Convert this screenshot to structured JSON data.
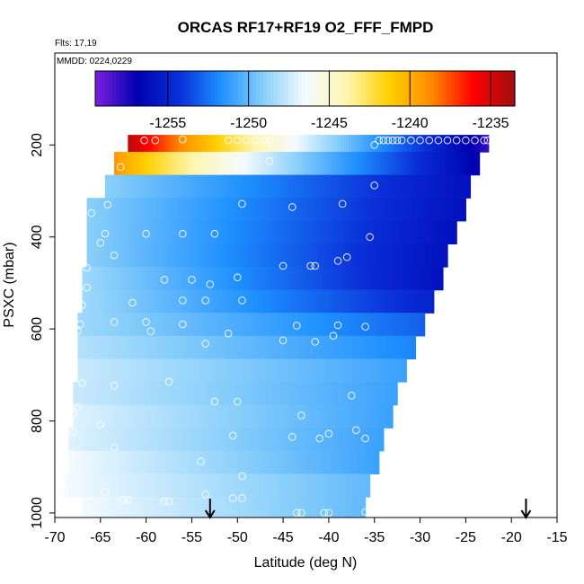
{
  "chart_data": {
    "type": "heatmap",
    "title": "ORCAS RF17+RF19 O2_FFF_FMPD",
    "subtitle_flights": "Flts: 17,19",
    "subtitle_dates": "MMDD: 0224,0229",
    "xlabel": "Latitude (deg N)",
    "ylabel": "PSXC (mbar)",
    "xlim": [
      -70,
      -15
    ],
    "ylim": [
      1010,
      0
    ],
    "x_ticks": [
      -70,
      -65,
      -60,
      -55,
      -50,
      -45,
      -40,
      -35,
      -30,
      -25,
      -20,
      -15
    ],
    "y_ticks": [
      200,
      400,
      600,
      800,
      1000
    ],
    "colorbar": {
      "range": [
        -1259.5,
        -1233.5
      ],
      "ticks": [
        -1255,
        -1250,
        -1245,
        -1240,
        -1235
      ],
      "stops": [
        "#7b1fe0",
        "#0000b0",
        "#0a2fd8",
        "#1e90ff",
        "#87cefa",
        "#f4fbff",
        "#fff6b0",
        "#ffd000",
        "#ff8c00",
        "#ff0000",
        "#a01010"
      ]
    },
    "bands": [
      {
        "p": 190,
        "lat_min": -62.0,
        "lat_max": -22.5,
        "v_min": -1258,
        "v_max": -1234
      },
      {
        "p": 240,
        "lat_min": -63.5,
        "lat_max": -23.5,
        "v_min": -1257,
        "v_max": -1239
      },
      {
        "p": 290,
        "lat_min": -64.5,
        "lat_max": -24.5,
        "v_min": -1256,
        "v_max": -1249
      },
      {
        "p": 340,
        "lat_min": -66.5,
        "lat_max": -25.0,
        "v_min": -1256,
        "v_max": -1249
      },
      {
        "p": 390,
        "lat_min": -66.5,
        "lat_max": -26.0,
        "v_min": -1256,
        "v_max": -1249
      },
      {
        "p": 440,
        "lat_min": -66.5,
        "lat_max": -27.0,
        "v_min": -1256,
        "v_max": -1249
      },
      {
        "p": 490,
        "lat_min": -67.0,
        "lat_max": -27.5,
        "v_min": -1256,
        "v_max": -1248.5
      },
      {
        "p": 540,
        "lat_min": -67.0,
        "lat_max": -28.5,
        "v_min": -1255,
        "v_max": -1248.5
      },
      {
        "p": 590,
        "lat_min": -67.5,
        "lat_max": -29.5,
        "v_min": -1253,
        "v_max": -1248.5
      },
      {
        "p": 640,
        "lat_min": -67.5,
        "lat_max": -30.5,
        "v_min": -1252,
        "v_max": -1248
      },
      {
        "p": 690,
        "lat_min": -67.5,
        "lat_max": -31.5,
        "v_min": -1251,
        "v_max": -1247.5
      },
      {
        "p": 740,
        "lat_min": -68.0,
        "lat_max": -32.5,
        "v_min": -1251,
        "v_max": -1247.5
      },
      {
        "p": 790,
        "lat_min": -68.0,
        "lat_max": -33.0,
        "v_min": -1251,
        "v_max": -1247
      },
      {
        "p": 840,
        "lat_min": -68.5,
        "lat_max": -34.0,
        "v_min": -1251,
        "v_max": -1247
      },
      {
        "p": 890,
        "lat_min": -68.5,
        "lat_max": -34.5,
        "v_min": -1251,
        "v_max": -1246.5
      },
      {
        "p": 940,
        "lat_min": -69.0,
        "lat_max": -35.5,
        "v_min": -1250,
        "v_max": -1246.5
      },
      {
        "p": 990,
        "lat_min": -67.0,
        "lat_max": -36.0,
        "v_min": -1250,
        "v_max": -1246.5
      }
    ],
    "points": [
      [
        -60.2,
        190
      ],
      [
        -59,
        190
      ],
      [
        -56,
        188
      ],
      [
        -51,
        190
      ],
      [
        -50,
        190
      ],
      [
        -49,
        190
      ],
      [
        -48,
        190
      ],
      [
        -47,
        190
      ],
      [
        -46.5,
        190
      ],
      [
        -34.5,
        190
      ],
      [
        -34,
        190
      ],
      [
        -33.5,
        190
      ],
      [
        -33,
        190
      ],
      [
        -32.5,
        190
      ],
      [
        -32,
        190
      ],
      [
        -31,
        190
      ],
      [
        -30,
        190
      ],
      [
        -29,
        190
      ],
      [
        -28,
        190
      ],
      [
        -27,
        190
      ],
      [
        -26,
        190
      ],
      [
        -25,
        190
      ],
      [
        -24,
        190
      ],
      [
        -23,
        190
      ],
      [
        -22.6,
        190
      ],
      [
        -35,
        200
      ],
      [
        -62.8,
        248
      ],
      [
        -46.5,
        235
      ],
      [
        -35,
        288
      ],
      [
        -49.5,
        328
      ],
      [
        -44,
        335
      ],
      [
        -38.5,
        328
      ],
      [
        -64.2,
        330
      ],
      [
        -66,
        348
      ],
      [
        -64.5,
        393
      ],
      [
        -60,
        393
      ],
      [
        -56,
        393
      ],
      [
        -52.5,
        393
      ],
      [
        -35.5,
        400
      ],
      [
        -65,
        413
      ],
      [
        -63.5,
        440
      ],
      [
        -45,
        463
      ],
      [
        -42,
        463
      ],
      [
        -41.5,
        463
      ],
      [
        -39,
        452
      ],
      [
        -38,
        444
      ],
      [
        -66.5,
        467
      ],
      [
        -58,
        493
      ],
      [
        -55,
        493
      ],
      [
        -53,
        503
      ],
      [
        -50,
        488
      ],
      [
        -66.5,
        510
      ],
      [
        -61.5,
        543
      ],
      [
        -56,
        538
      ],
      [
        -53.5,
        538
      ],
      [
        -49.5,
        538
      ],
      [
        -67,
        548
      ],
      [
        -63.5,
        585
      ],
      [
        -60,
        585
      ],
      [
        -56,
        590
      ],
      [
        -43.5,
        593
      ],
      [
        -39,
        592
      ],
      [
        -36,
        595
      ],
      [
        -67.2,
        590
      ],
      [
        -67.5,
        605
      ],
      [
        -59.5,
        605
      ],
      [
        -51,
        610
      ],
      [
        -45,
        625
      ],
      [
        -41.5,
        628
      ],
      [
        -39.5,
        615
      ],
      [
        -53.5,
        632
      ],
      [
        -67,
        718
      ],
      [
        -63.5,
        723
      ],
      [
        -57.5,
        715
      ],
      [
        -52.5,
        758
      ],
      [
        -50,
        758
      ],
      [
        -37.5,
        745
      ],
      [
        -67.5,
        770
      ],
      [
        -68,
        785
      ],
      [
        -43,
        788
      ],
      [
        -65,
        808
      ],
      [
        -68,
        825
      ],
      [
        -44,
        835
      ],
      [
        -41,
        838
      ],
      [
        -40,
        828
      ],
      [
        -37,
        820
      ],
      [
        -36,
        838
      ],
      [
        -50.5,
        832
      ],
      [
        -63.5,
        858
      ],
      [
        -68.2,
        872
      ],
      [
        -54,
        888
      ],
      [
        -68.5,
        905
      ],
      [
        -49.5,
        920
      ],
      [
        -68.6,
        940
      ],
      [
        -64.5,
        955
      ],
      [
        -62.5,
        972
      ],
      [
        -62,
        972
      ],
      [
        -58,
        975
      ],
      [
        -57.5,
        975
      ],
      [
        -53.5,
        960
      ],
      [
        -50.5,
        968
      ],
      [
        -49.5,
        968
      ],
      [
        -43.5,
        1000
      ],
      [
        -43,
        1000
      ],
      [
        -40.5,
        1000
      ],
      [
        -40,
        1000
      ],
      [
        -36,
        998
      ],
      [
        -35.5,
        990
      ],
      [
        -69,
        960
      ]
    ],
    "arrows_at_latitude": [
      -53,
      -18.4
    ]
  }
}
